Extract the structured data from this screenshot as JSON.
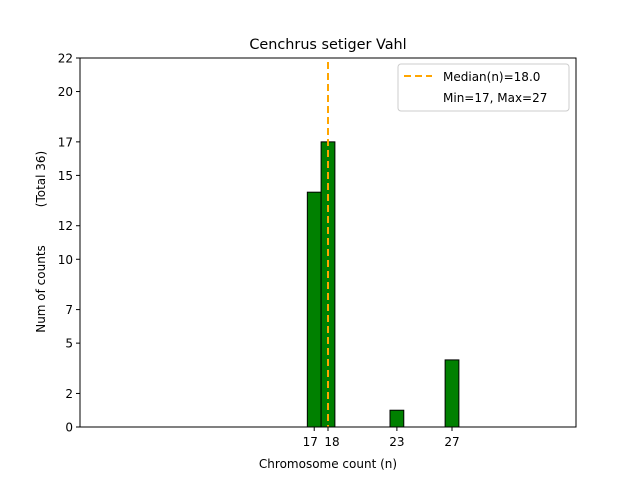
{
  "chart_data": {
    "type": "bar",
    "title": "Cenchrus setiger Vahl",
    "xlabel": "Chromosome count (n)",
    "ylabel": "Num of counts",
    "ylabel2": "(Total 36)",
    "bins": [
      17,
      18,
      19,
      20,
      21,
      22,
      23,
      24,
      25,
      26,
      27,
      28,
      29,
      30
    ],
    "values": [
      14,
      17,
      0,
      0,
      0,
      0,
      1,
      0,
      0,
      0,
      4,
      0,
      0,
      0
    ],
    "xticks": [
      17,
      18,
      23,
      27
    ],
    "yticks": [
      0,
      2,
      5,
      7,
      10,
      12,
      15,
      17,
      20,
      22
    ],
    "xlim": [
      0,
      36
    ],
    "ylim": [
      0,
      22
    ],
    "median": 18.0,
    "bar_color": "#008000",
    "median_color": "#FFA500",
    "legend": {
      "placement": "top-right",
      "entries": [
        "Median(n)=18.0",
        "Min=17, Max=27"
      ]
    }
  }
}
